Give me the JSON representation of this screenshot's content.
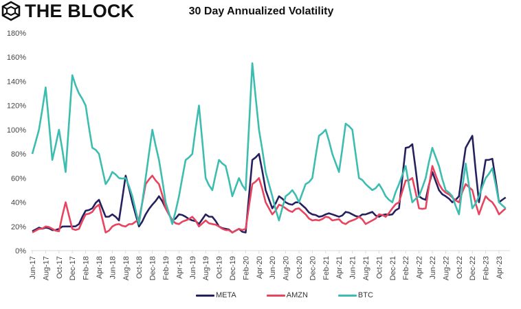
{
  "brand": {
    "name": "THE BLOCK",
    "icon": "cube-logo-icon"
  },
  "chart_data": {
    "type": "line",
    "title": "30 Day Annualized Volatility",
    "xlabel": "",
    "ylabel": "",
    "ylim": [
      0,
      180
    ],
    "yticks": [
      "0%",
      "20%",
      "40%",
      "60%",
      "80%",
      "100%",
      "120%",
      "140%",
      "160%",
      "180%"
    ],
    "ytick_values": [
      0,
      20,
      40,
      60,
      80,
      100,
      120,
      140,
      160,
      180
    ],
    "xtick_labels": [
      "Jun-17",
      "Aug-17",
      "Oct-17",
      "Dec-17",
      "Feb-18",
      "Apr-18",
      "Jun-18",
      "Aug-18",
      "Oct-18",
      "Dec-18",
      "Feb-19",
      "Apr-19",
      "Jun-19",
      "Aug-19",
      "Oct-19",
      "Dec-19",
      "Feb-20",
      "Apr-20",
      "Jun-20",
      "Aug-20",
      "Oct-20",
      "Dec-20",
      "Feb-21",
      "Apr-21",
      "Jun-21",
      "Aug-21",
      "Oct-21",
      "Dec-21",
      "Feb-22",
      "Apr-22",
      "Jun-22",
      "Aug-22",
      "Oct-22",
      "Dec-22",
      "Feb-23",
      "Apr-23"
    ],
    "x": [
      "Jun-17",
      "Jul-17",
      "Aug-17",
      "Sep-17",
      "Oct-17",
      "Nov-17",
      "Dec-17",
      "Jan-18",
      "Feb-18",
      "Mar-18",
      "Apr-18",
      "May-18",
      "Jun-18",
      "Jul-18",
      "Aug-18",
      "Sep-18",
      "Oct-18",
      "Nov-18",
      "Dec-18",
      "Jan-19",
      "Feb-19",
      "Mar-19",
      "Apr-19",
      "May-19",
      "Jun-19",
      "Jul-19",
      "Aug-19",
      "Sep-19",
      "Oct-19",
      "Nov-19",
      "Dec-19",
      "Jan-20",
      "Feb-20",
      "Mar-20",
      "Apr-20",
      "May-20",
      "Jun-20",
      "Jul-20",
      "Aug-20",
      "Sep-20",
      "Oct-20",
      "Nov-20",
      "Dec-20",
      "Jan-21",
      "Feb-21",
      "Mar-21",
      "Apr-21",
      "May-21",
      "Jun-21",
      "Jul-21",
      "Aug-21",
      "Sep-21",
      "Oct-21",
      "Nov-21",
      "Dec-21",
      "Jan-22",
      "Feb-22",
      "Mar-22",
      "Apr-22",
      "May-22",
      "Jun-22",
      "Jul-22",
      "Aug-22",
      "Sep-22",
      "Oct-22",
      "Nov-22",
      "Dec-22",
      "Jan-23",
      "Feb-23",
      "Mar-23",
      "Apr-23",
      "May-23"
    ],
    "series": [
      {
        "name": "META",
        "color": "#25215e",
        "values": [
          16,
          19,
          19,
          17,
          18,
          20,
          20,
          22,
          33,
          35,
          42,
          28,
          30,
          25,
          62,
          40,
          20,
          30,
          38,
          45,
          35,
          25,
          30,
          28,
          25,
          22,
          30,
          28,
          20,
          18,
          15,
          18,
          15,
          75,
          80,
          50,
          35,
          45,
          40,
          38,
          40,
          35,
          30,
          28,
          30,
          30,
          28,
          32,
          30,
          28,
          30,
          32,
          28,
          30,
          30,
          35,
          85,
          88,
          45,
          42,
          65,
          50,
          45,
          40,
          45,
          85,
          95,
          40,
          75,
          76,
          40,
          44
        ]
      },
      {
        "name": "AMZN",
        "color": "#e8435f",
        "values": [
          15,
          18,
          20,
          18,
          16,
          40,
          18,
          18,
          30,
          32,
          38,
          15,
          20,
          22,
          20,
          22,
          26,
          55,
          62,
          55,
          35,
          25,
          22,
          25,
          28,
          20,
          25,
          22,
          20,
          17,
          15,
          18,
          18,
          55,
          60,
          40,
          30,
          38,
          35,
          32,
          35,
          30,
          25,
          25,
          28,
          25,
          26,
          22,
          25,
          28,
          22,
          25,
          30,
          28,
          35,
          40,
          58,
          60,
          35,
          35,
          70,
          55,
          48,
          44,
          40,
          55,
          50,
          30,
          45,
          40,
          30,
          35
        ]
      },
      {
        "name": "BTC",
        "color": "#3dbcb0",
        "values": [
          80,
          100,
          135,
          75,
          100,
          65,
          145,
          130,
          120,
          85,
          80,
          55,
          65,
          60,
          60,
          45,
          22,
          60,
          100,
          75,
          40,
          22,
          45,
          75,
          80,
          120,
          60,
          50,
          75,
          70,
          45,
          60,
          50,
          155,
          100,
          65,
          45,
          25,
          45,
          50,
          40,
          55,
          60,
          95,
          100,
          80,
          65,
          105,
          100,
          60,
          55,
          50,
          55,
          45,
          40,
          55,
          70,
          40,
          45,
          60,
          85,
          70,
          50,
          45,
          30,
          72,
          35,
          45,
          60,
          68,
          40,
          35
        ]
      }
    ],
    "legend": {
      "position": "bottom",
      "entries": [
        "META",
        "AMZN",
        "BTC"
      ]
    },
    "grid": false
  }
}
